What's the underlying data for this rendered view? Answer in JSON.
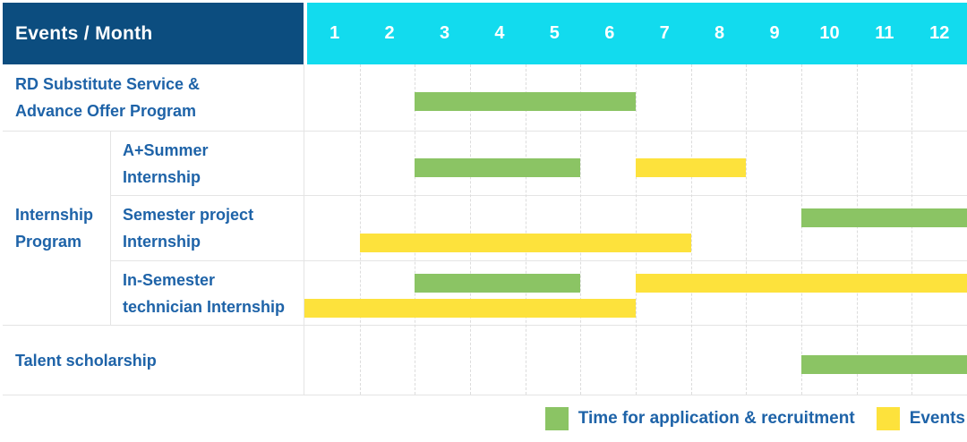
{
  "header": {
    "title": "Events / Month",
    "months": [
      "1",
      "2",
      "3",
      "4",
      "5",
      "6",
      "7",
      "8",
      "9",
      "10",
      "11",
      "12"
    ]
  },
  "group_label_lines": [
    "Internship",
    "Program"
  ],
  "rows": [
    {
      "label_lines": [
        "RD Substitute Service &",
        "Advance Offer Program"
      ],
      "bars": [
        {
          "series": "Time for application & recruitment",
          "color": "green",
          "start_month": 3,
          "end_month": 6,
          "lane": "mid"
        }
      ]
    },
    {
      "label_lines": [
        "A+Summer",
        "Internship"
      ],
      "bars": [
        {
          "series": "Time for application & recruitment",
          "color": "green",
          "start_month": 3,
          "end_month": 5,
          "lane": "mid"
        },
        {
          "series": "Events",
          "color": "yellow",
          "start_month": 7,
          "end_month": 8,
          "lane": "mid"
        }
      ]
    },
    {
      "label_lines": [
        "Semester project",
        "Internship"
      ],
      "bars": [
        {
          "series": "Time for application & recruitment",
          "color": "green",
          "start_month": 10,
          "end_month": 12,
          "lane": "upper"
        },
        {
          "series": "Events",
          "color": "yellow",
          "start_month": 2,
          "end_month": 7,
          "lane": "lower"
        }
      ]
    },
    {
      "label_lines": [
        "In-Semester",
        "technician Internship"
      ],
      "bars": [
        {
          "series": "Time for application & recruitment",
          "color": "green",
          "start_month": 3,
          "end_month": 5,
          "lane": "upper"
        },
        {
          "series": "Events",
          "color": "yellow",
          "start_month": 7,
          "end_month": 12,
          "lane": "upper"
        },
        {
          "series": "Events",
          "color": "yellow",
          "start_month": 1,
          "end_month": 6,
          "lane": "lower"
        }
      ]
    },
    {
      "label_lines": [
        "Talent scholarship"
      ],
      "bars": [
        {
          "series": "Time for application & recruitment",
          "color": "green",
          "start_month": 10,
          "end_month": 12,
          "lane": "mid"
        }
      ]
    }
  ],
  "legend": [
    {
      "color": "green",
      "label": "Time for application & recruitment"
    },
    {
      "color": "yellow",
      "label": "Events"
    }
  ],
  "colors": {
    "header_dark_blue": "#0C4D7F",
    "header_cyan": "#12DBEE",
    "label_text_blue": "#1E63A8",
    "bar_green": "#8BC464",
    "bar_yellow": "#FDE23C",
    "gridline_gray": "#DCDCDC"
  },
  "chart_data": {
    "type": "bar",
    "subtype": "gantt-timeline",
    "title": "Events / Month",
    "xlabel": "Month",
    "x_ticks": [
      1,
      2,
      3,
      4,
      5,
      6,
      7,
      8,
      9,
      10,
      11,
      12
    ],
    "xlim": [
      1,
      12
    ],
    "grid": "vertical-dashed",
    "legend_position": "bottom-right",
    "series_legend": [
      "Time for application & recruitment",
      "Events"
    ],
    "rows": [
      {
        "category": "RD Substitute Service & Advance Offer Program",
        "group": null,
        "bars": [
          {
            "series": "Time for application & recruitment",
            "start_month": 3,
            "end_month": 6
          }
        ]
      },
      {
        "category": "A+Summer Internship",
        "group": "Internship Program",
        "bars": [
          {
            "series": "Time for application & recruitment",
            "start_month": 3,
            "end_month": 5
          },
          {
            "series": "Events",
            "start_month": 7,
            "end_month": 8
          }
        ]
      },
      {
        "category": "Semester project Internship",
        "group": "Internship Program",
        "bars": [
          {
            "series": "Time for application & recruitment",
            "start_month": 10,
            "end_month": 12
          },
          {
            "series": "Events",
            "start_month": 2,
            "end_month": 7
          }
        ]
      },
      {
        "category": "In-Semester technician Internship",
        "group": "Internship Program",
        "bars": [
          {
            "series": "Time for application & recruitment",
            "start_month": 3,
            "end_month": 5
          },
          {
            "series": "Events",
            "start_month": 7,
            "end_month": 12
          },
          {
            "series": "Events",
            "start_month": 1,
            "end_month": 6
          }
        ]
      },
      {
        "category": "Talent scholarship",
        "group": null,
        "bars": [
          {
            "series": "Time for application & recruitment",
            "start_month": 10,
            "end_month": 12
          }
        ]
      }
    ]
  }
}
